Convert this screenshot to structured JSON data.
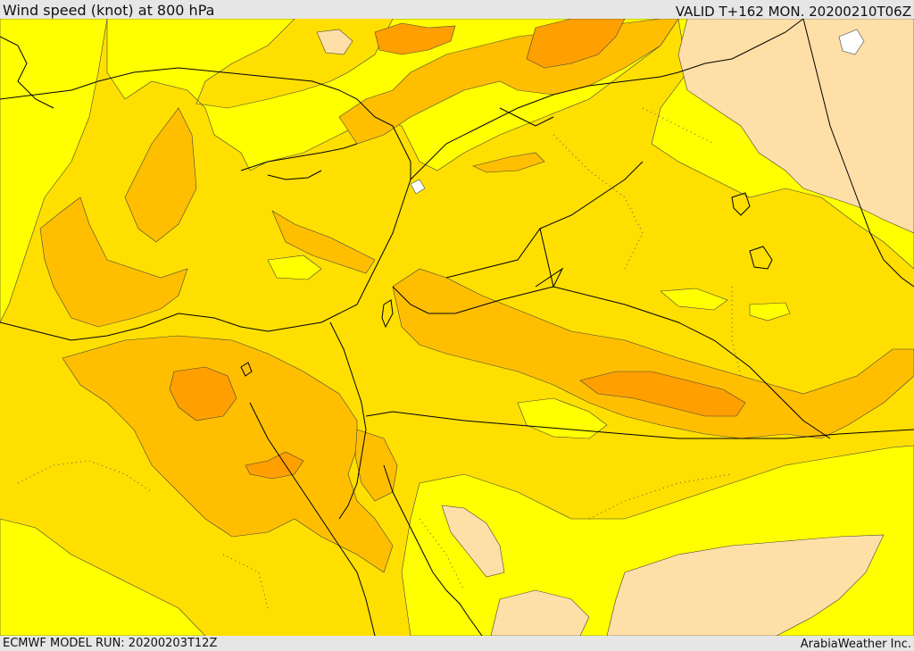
{
  "header": {
    "title": "Wind speed (knot) at 800 hPa",
    "valid_time": "VALID T+162 MON. 20200210T06Z"
  },
  "footer": {
    "model_run": "ECMWF MODEL RUN: 20200203T12Z",
    "credit": "ArabiaWeather Inc."
  },
  "map": {
    "colors": {
      "very_light": "#ffdfa8",
      "light_yellow": "#ffff00",
      "yellow": "#ffdf00",
      "light_orange": "#ffbf00",
      "orange": "#ff9f00",
      "white": "#ffffff",
      "boundary": "#000000"
    }
  }
}
